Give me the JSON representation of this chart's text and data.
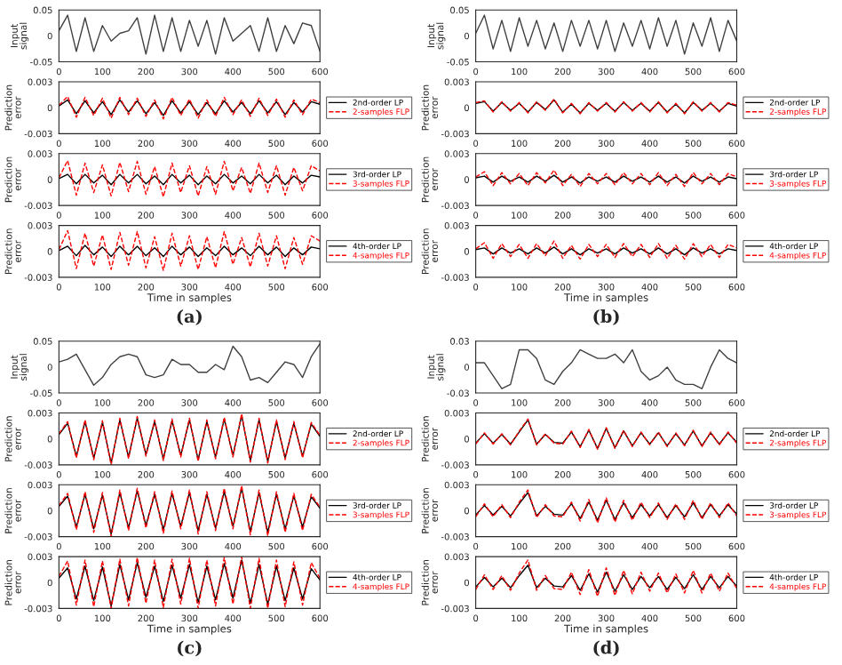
{
  "chart_data": [
    {
      "type": "line",
      "ylabel": "Input signal",
      "x": [
        0,
        20,
        40,
        60,
        80,
        100,
        120,
        140,
        160,
        180,
        200,
        220,
        240,
        260,
        280,
        300,
        320,
        340,
        360,
        380,
        400,
        420,
        440,
        460,
        480,
        500,
        520,
        540,
        560,
        580,
        600
      ],
      "xlim": [
        0,
        600
      ],
      "xticks": [
        0,
        100,
        200,
        300,
        400,
        500,
        600
      ],
      "ylim": [
        -0.05,
        0.05
      ],
      "yticks": [
        -0.05,
        0,
        0.05
      ],
      "series": [
        {
          "color": "#404040",
          "line_style": "solid",
          "values": [
            0.01,
            0.04,
            -0.03,
            0.035,
            -0.03,
            0.02,
            -0.01,
            0.005,
            0.01,
            0.035,
            -0.035,
            0.04,
            -0.03,
            0.035,
            -0.03,
            0.03,
            -0.02,
            0.03,
            -0.035,
            0.035,
            -0.01,
            0.005,
            0.02,
            -0.03,
            0.035,
            -0.03,
            0.02,
            -0.015,
            0.025,
            0.02,
            -0.03
          ]
        }
      ]
    },
    {
      "type": "line",
      "ylabel": "Prediction error",
      "x": [
        0,
        20,
        40,
        60,
        80,
        100,
        120,
        140,
        160,
        180,
        200,
        220,
        240,
        260,
        280,
        300,
        320,
        340,
        360,
        380,
        400,
        420,
        440,
        460,
        480,
        500,
        520,
        540,
        560,
        580,
        600
      ],
      "xlim": [
        0,
        600
      ],
      "xticks": [
        0,
        100,
        200,
        300,
        400,
        500,
        600
      ],
      "ylim": [
        -0.003,
        0.003
      ],
      "yticks": [
        -0.003,
        0,
        0.003
      ],
      "legend": "right",
      "series": [
        {
          "name": "2nd-order LP",
          "color": "#000000",
          "line_style": "solid",
          "values": [
            0.0002,
            0.0009,
            -0.0007,
            0.0008,
            -0.0006,
            0.0007,
            -0.0008,
            0.0009,
            -0.0005,
            0.0008,
            -0.0007,
            0.0006,
            -0.0009,
            0.0008,
            -0.0006,
            0.0007,
            -0.0008,
            0.0006,
            -0.0007,
            0.0008,
            -0.0005,
            0.0006,
            -0.0007,
            0.0008,
            -0.0006,
            0.0007,
            -0.0008,
            0.0006,
            -0.0005,
            0.0007,
            0.0004
          ]
        },
        {
          "name": "2-samples FLP",
          "color": "#ff0000",
          "line_style": "dashed",
          "values": [
            0.0003,
            0.0013,
            -0.0011,
            0.0012,
            -0.0009,
            0.0011,
            -0.0012,
            0.0012,
            -0.0008,
            0.0011,
            -0.001,
            0.0009,
            -0.0013,
            0.0012,
            -0.0009,
            0.001,
            -0.0012,
            0.0009,
            -0.001,
            0.0012,
            -0.0008,
            0.0009,
            -0.001,
            0.0011,
            -0.0009,
            0.001,
            -0.0011,
            0.0009,
            -0.0008,
            0.001,
            0.0006
          ]
        }
      ]
    },
    {
      "type": "line",
      "ylabel": "Prediction error",
      "x": [
        0,
        20,
        40,
        60,
        80,
        100,
        120,
        140,
        160,
        180,
        200,
        220,
        240,
        260,
        280,
        300,
        320,
        340,
        360,
        380,
        400,
        420,
        440,
        460,
        480,
        500,
        520,
        540,
        560,
        580,
        600
      ],
      "xlim": [
        0,
        600
      ],
      "xticks": [
        0,
        100,
        200,
        300,
        400,
        500,
        600
      ],
      "ylim": [
        -0.003,
        0.003
      ],
      "yticks": [
        -0.003,
        0,
        0.003
      ],
      "legend": "right",
      "series": [
        {
          "name": "3rd-order LP",
          "color": "#000000",
          "line_style": "solid",
          "values": [
            0.0001,
            0.0006,
            -0.0005,
            0.0006,
            -0.0004,
            0.0005,
            -0.0006,
            0.0006,
            -0.0004,
            0.0006,
            -0.0005,
            0.0004,
            -0.0006,
            0.0006,
            -0.0004,
            0.0005,
            -0.0006,
            0.0004,
            -0.0005,
            0.0006,
            -0.0004,
            0.0004,
            -0.0005,
            0.0006,
            -0.0004,
            0.0005,
            -0.0006,
            0.0004,
            -0.0004,
            0.0005,
            0.0003
          ]
        },
        {
          "name": "3-samples FLP",
          "color": "#ff0000",
          "line_style": "dashed",
          "values": [
            0.0002,
            0.0022,
            -0.0018,
            0.0019,
            -0.0015,
            0.0017,
            -0.0019,
            0.002,
            -0.0014,
            0.0021,
            -0.0017,
            0.0015,
            -0.002,
            0.0019,
            -0.0015,
            0.0016,
            -0.0019,
            0.0015,
            -0.0017,
            0.0021,
            -0.0013,
            0.0014,
            -0.0016,
            0.0019,
            -0.0015,
            0.0016,
            -0.0018,
            0.0014,
            -0.0013,
            0.0016,
            0.001
          ]
        }
      ]
    },
    {
      "type": "line",
      "ylabel": "Prediction error",
      "xlabel": "Time in samples",
      "annotations": [
        "(a)"
      ],
      "x": [
        0,
        20,
        40,
        60,
        80,
        100,
        120,
        140,
        160,
        180,
        200,
        220,
        240,
        260,
        280,
        300,
        320,
        340,
        360,
        380,
        400,
        420,
        440,
        460,
        480,
        500,
        520,
        540,
        560,
        580,
        600
      ],
      "xlim": [
        0,
        600
      ],
      "xticks": [
        0,
        100,
        200,
        300,
        400,
        500,
        600
      ],
      "ylim": [
        -0.003,
        0.003
      ],
      "yticks": [
        -0.003,
        0,
        0.003
      ],
      "legend": "right",
      "series": [
        {
          "name": "4th-order LP",
          "color": "#000000",
          "line_style": "solid",
          "values": [
            0.0001,
            0.0006,
            -0.0005,
            0.0007,
            -0.0004,
            0.0005,
            -0.0006,
            0.0006,
            -0.0004,
            0.0006,
            -0.0005,
            0.0004,
            -0.0006,
            0.0006,
            -0.0004,
            0.0005,
            -0.0006,
            0.0004,
            -0.0005,
            0.0006,
            -0.0004,
            0.0004,
            -0.0005,
            0.0006,
            -0.0004,
            0.0005,
            -0.0006,
            0.0004,
            -0.0004,
            0.0005,
            0.0003
          ]
        },
        {
          "name": "4-samples FLP",
          "color": "#ff0000",
          "line_style": "dashed",
          "values": [
            0.0002,
            0.0024,
            -0.002,
            0.0021,
            -0.0017,
            0.0019,
            -0.0021,
            0.0022,
            -0.0016,
            0.0023,
            -0.0019,
            0.0017,
            -0.0022,
            0.0021,
            -0.0017,
            0.0018,
            -0.0021,
            0.0017,
            -0.0019,
            0.0023,
            -0.0015,
            0.0016,
            -0.0018,
            0.0021,
            -0.0017,
            0.0018,
            -0.002,
            0.0016,
            -0.0015,
            0.0018,
            0.0012
          ]
        }
      ]
    },
    {
      "type": "line",
      "ylabel": "Input signal",
      "x": [
        0,
        20,
        40,
        60,
        80,
        100,
        120,
        140,
        160,
        180,
        200,
        220,
        240,
        260,
        280,
        300,
        320,
        340,
        360,
        380,
        400,
        420,
        440,
        460,
        480,
        500,
        520,
        540,
        560,
        580,
        600
      ],
      "xlim": [
        0,
        600
      ],
      "xticks": [
        0,
        100,
        200,
        300,
        400,
        500,
        600
      ],
      "ylim": [
        -0.05,
        0.05
      ],
      "yticks": [
        -0.05,
        0,
        0.05
      ],
      "series": [
        {
          "color": "#404040",
          "line_style": "solid",
          "values": [
            0.005,
            0.04,
            -0.025,
            0.03,
            -0.03,
            0.035,
            -0.02,
            0.03,
            -0.025,
            0.025,
            -0.03,
            0.03,
            -0.02,
            0.03,
            -0.025,
            0.03,
            -0.03,
            0.025,
            -0.02,
            0.03,
            -0.025,
            0.035,
            -0.02,
            0.03,
            -0.035,
            0.025,
            -0.02,
            0.035,
            -0.03,
            0.03,
            -0.01
          ]
        }
      ]
    },
    {
      "type": "line",
      "ylabel": "Prediction error",
      "x": [
        0,
        20,
        40,
        60,
        80,
        100,
        120,
        140,
        160,
        180,
        200,
        220,
        240,
        260,
        280,
        300,
        320,
        340,
        360,
        380,
        400,
        420,
        440,
        460,
        480,
        500,
        520,
        540,
        560,
        580,
        600
      ],
      "xlim": [
        0,
        600
      ],
      "xticks": [
        0,
        100,
        200,
        300,
        400,
        500,
        600
      ],
      "ylim": [
        -0.003,
        0.003
      ],
      "yticks": [
        -0.003,
        0,
        0.003
      ],
      "legend": "right",
      "series": [
        {
          "name": "2nd-order LP",
          "color": "#000000",
          "line_style": "solid",
          "values": [
            0.0005,
            0.0007,
            -0.0004,
            0.0006,
            -0.0003,
            0.0005,
            -0.0005,
            0.0006,
            -0.0002,
            0.0009,
            -0.0005,
            0.0004,
            -0.0006,
            0.0005,
            -0.0003,
            0.0005,
            -0.0004,
            0.0006,
            -0.0003,
            0.0005,
            -0.0004,
            0.0006,
            -0.0005,
            0.0004,
            -0.0006,
            0.0006,
            -0.0003,
            0.0005,
            -0.0004,
            0.0005,
            0.0002
          ]
        },
        {
          "name": "2-samples FLP",
          "color": "#ff0000",
          "line_style": "dashed",
          "values": [
            0.0006,
            0.0008,
            -0.0005,
            0.0007,
            -0.0004,
            0.0006,
            -0.0006,
            0.0007,
            -0.0003,
            0.001,
            -0.0006,
            0.0005,
            -0.0007,
            0.0006,
            -0.0004,
            0.0006,
            -0.0005,
            0.0007,
            -0.0004,
            0.0006,
            -0.0005,
            0.0007,
            -0.0006,
            0.0005,
            -0.0007,
            0.0007,
            -0.0004,
            0.0006,
            -0.0005,
            0.0006,
            0.0003
          ]
        }
      ]
    },
    {
      "type": "line",
      "ylabel": "Prediction error",
      "x": [
        0,
        20,
        40,
        60,
        80,
        100,
        120,
        140,
        160,
        180,
        200,
        220,
        240,
        260,
        280,
        300,
        320,
        340,
        360,
        380,
        400,
        420,
        440,
        460,
        480,
        500,
        520,
        540,
        560,
        580,
        600
      ],
      "xlim": [
        0,
        600
      ],
      "xticks": [
        0,
        100,
        200,
        300,
        400,
        500,
        600
      ],
      "ylim": [
        -0.003,
        0.003
      ],
      "yticks": [
        -0.003,
        0,
        0.003
      ],
      "legend": "right",
      "series": [
        {
          "name": "3rd-order LP",
          "color": "#000000",
          "line_style": "solid",
          "values": [
            0.0002,
            0.0004,
            -0.0003,
            0.0004,
            -0.0002,
            0.0003,
            -0.0003,
            0.0004,
            -0.0002,
            0.0005,
            -0.0003,
            0.0003,
            -0.0004,
            0.0003,
            -0.0002,
            0.0003,
            -0.0003,
            0.0004,
            -0.0002,
            0.0003,
            -0.0003,
            0.0004,
            -0.0003,
            0.0003,
            -0.0004,
            0.0004,
            -0.0002,
            0.0003,
            -0.0003,
            0.0003,
            0.0001
          ]
        },
        {
          "name": "3-samples FLP",
          "color": "#ff0000",
          "line_style": "dashed",
          "values": [
            0.0003,
            0.0009,
            -0.0007,
            0.0008,
            -0.0005,
            0.0007,
            -0.0007,
            0.0008,
            -0.0004,
            0.0011,
            -0.0007,
            0.0006,
            -0.0008,
            0.0007,
            -0.0005,
            0.0007,
            -0.0006,
            0.0008,
            -0.0005,
            0.0007,
            -0.0006,
            0.0008,
            -0.0007,
            0.0006,
            -0.0008,
            0.0008,
            -0.0005,
            0.0007,
            -0.0006,
            0.0007,
            0.0003
          ]
        }
      ]
    },
    {
      "type": "line",
      "ylabel": "Prediction error",
      "xlabel": "Time in samples",
      "annotations": [
        "(b)"
      ],
      "x": [
        0,
        20,
        40,
        60,
        80,
        100,
        120,
        140,
        160,
        180,
        200,
        220,
        240,
        260,
        280,
        300,
        320,
        340,
        360,
        380,
        400,
        420,
        440,
        460,
        480,
        500,
        520,
        540,
        560,
        580,
        600
      ],
      "xlim": [
        0,
        600
      ],
      "xticks": [
        0,
        100,
        200,
        300,
        400,
        500,
        600
      ],
      "ylim": [
        -0.003,
        0.003
      ],
      "yticks": [
        -0.003,
        0,
        0.003
      ],
      "legend": "right",
      "series": [
        {
          "name": "4th-order LP",
          "color": "#000000",
          "line_style": "solid",
          "values": [
            0.0002,
            0.0004,
            -0.0003,
            0.0004,
            -0.0002,
            0.0003,
            -0.0003,
            0.0004,
            -0.0002,
            0.0005,
            -0.0003,
            0.0003,
            -0.0004,
            0.0003,
            -0.0002,
            0.0003,
            -0.0003,
            0.0004,
            -0.0002,
            0.0003,
            -0.0003,
            0.0004,
            -0.0003,
            0.0003,
            -0.0004,
            0.0004,
            -0.0002,
            0.0003,
            -0.0003,
            0.0003,
            0.0001
          ]
        },
        {
          "name": "4-samples FLP",
          "color": "#ff0000",
          "line_style": "dashed",
          "values": [
            0.0003,
            0.001,
            -0.0008,
            0.0009,
            -0.0006,
            0.0008,
            -0.0008,
            0.0009,
            -0.0005,
            0.0012,
            -0.0008,
            0.0007,
            -0.0009,
            0.0008,
            -0.0006,
            0.0008,
            -0.0007,
            0.0009,
            -0.0006,
            0.0008,
            -0.0007,
            0.0009,
            -0.0008,
            0.0007,
            -0.0009,
            0.0009,
            -0.0006,
            0.0008,
            -0.0007,
            0.0008,
            0.0004
          ]
        }
      ]
    },
    {
      "type": "line",
      "ylabel": "Input signal",
      "x": [
        0,
        20,
        40,
        60,
        80,
        100,
        120,
        140,
        160,
        180,
        200,
        220,
        240,
        260,
        280,
        300,
        320,
        340,
        360,
        380,
        400,
        420,
        440,
        460,
        480,
        500,
        520,
        540,
        560,
        580,
        600
      ],
      "xlim": [
        0,
        600
      ],
      "xticks": [
        0,
        100,
        200,
        300,
        400,
        500,
        600
      ],
      "ylim": [
        -0.05,
        0.05
      ],
      "yticks": [
        -0.05,
        0,
        0.05
      ],
      "series": [
        {
          "color": "#404040",
          "line_style": "solid",
          "values": [
            0.01,
            0.015,
            0.025,
            -0.005,
            -0.035,
            -0.02,
            0.005,
            0.02,
            0.025,
            0.02,
            -0.015,
            -0.02,
            -0.015,
            0.015,
            0.005,
            0.005,
            -0.01,
            -0.01,
            0.005,
            -0.005,
            0.04,
            0.02,
            -0.025,
            -0.02,
            -0.03,
            -0.01,
            0.01,
            0.005,
            -0.02,
            0.02,
            0.045
          ]
        }
      ]
    },
    {
      "type": "line",
      "ylabel": "Prediction error",
      "x": [
        0,
        20,
        40,
        60,
        80,
        100,
        120,
        140,
        160,
        180,
        200,
        220,
        240,
        260,
        280,
        300,
        320,
        340,
        360,
        380,
        400,
        420,
        440,
        460,
        480,
        500,
        520,
        540,
        560,
        580,
        600
      ],
      "xlim": [
        0,
        600
      ],
      "xticks": [
        0,
        100,
        200,
        300,
        400,
        500,
        600
      ],
      "ylim": [
        -0.003,
        0.003
      ],
      "yticks": [
        -0.003,
        0,
        0.003
      ],
      "legend": "right",
      "series": [
        {
          "name": "2nd-order LP",
          "color": "#000000",
          "line_style": "solid",
          "values": [
            0.0005,
            0.0018,
            -0.002,
            0.002,
            -0.0022,
            0.0019,
            -0.0028,
            0.0022,
            -0.0021,
            0.0024,
            -0.0018,
            0.002,
            -0.0023,
            0.0021,
            -0.0019,
            0.0022,
            -0.0024,
            0.002,
            -0.0021,
            0.0023,
            -0.0019,
            0.0027,
            -0.0025,
            0.0022,
            -0.0026,
            0.002,
            -0.0022,
            0.0018,
            -0.002,
            0.0017,
            0.0003
          ]
        },
        {
          "name": "2-samples FLP",
          "color": "#ff0000",
          "line_style": "dashed",
          "values": [
            0.0006,
            0.002,
            -0.0022,
            0.0022,
            -0.0024,
            0.0021,
            -0.003,
            0.0024,
            -0.0023,
            0.0026,
            -0.002,
            0.0022,
            -0.0025,
            0.0023,
            -0.0021,
            0.0024,
            -0.0026,
            0.0022,
            -0.0023,
            0.0025,
            -0.0021,
            0.0029,
            -0.0027,
            0.0024,
            -0.0028,
            0.0022,
            -0.0024,
            0.002,
            -0.0022,
            0.0019,
            0.0004
          ]
        }
      ]
    },
    {
      "type": "line",
      "ylabel": "Prediction error",
      "x": [
        0,
        20,
        40,
        60,
        80,
        100,
        120,
        140,
        160,
        180,
        200,
        220,
        240,
        260,
        280,
        300,
        320,
        340,
        360,
        380,
        400,
        420,
        440,
        460,
        480,
        500,
        520,
        540,
        560,
        580,
        600
      ],
      "xlim": [
        0,
        600
      ],
      "xticks": [
        0,
        100,
        200,
        300,
        400,
        500,
        600
      ],
      "ylim": [
        -0.003,
        0.003
      ],
      "yticks": [
        -0.003,
        0,
        0.003
      ],
      "legend": "right",
      "series": [
        {
          "name": "3rd-order LP",
          "color": "#000000",
          "line_style": "solid",
          "values": [
            0.0005,
            0.0017,
            -0.0019,
            0.0019,
            -0.0021,
            0.0018,
            -0.0027,
            0.0021,
            -0.002,
            0.0023,
            -0.0017,
            0.0019,
            -0.0022,
            0.002,
            -0.0018,
            0.0021,
            -0.0023,
            0.0019,
            -0.002,
            0.0022,
            -0.0018,
            0.0026,
            -0.0024,
            0.0021,
            -0.0025,
            0.0019,
            -0.0021,
            0.0017,
            -0.0019,
            0.0016,
            0.0003
          ]
        },
        {
          "name": "3-samples FLP",
          "color": "#ff0000",
          "line_style": "dashed",
          "values": [
            0.0006,
            0.002,
            -0.0022,
            0.0022,
            -0.0025,
            0.0021,
            -0.003,
            0.0024,
            -0.0023,
            0.0026,
            -0.002,
            0.0022,
            -0.0026,
            0.0023,
            -0.0021,
            0.0024,
            -0.0027,
            0.0022,
            -0.0023,
            0.0026,
            -0.0021,
            0.0029,
            -0.0028,
            0.0024,
            -0.0029,
            0.0022,
            -0.0025,
            0.002,
            -0.0023,
            0.0019,
            0.0004
          ]
        }
      ]
    },
    {
      "type": "line",
      "ylabel": "Prediction error",
      "xlabel": "Time in samples",
      "annotations": [
        "(c)"
      ],
      "x": [
        0,
        20,
        40,
        60,
        80,
        100,
        120,
        140,
        160,
        180,
        200,
        220,
        240,
        260,
        280,
        300,
        320,
        340,
        360,
        380,
        400,
        420,
        440,
        460,
        480,
        500,
        520,
        540,
        560,
        580,
        600
      ],
      "xlim": [
        0,
        600
      ],
      "xticks": [
        0,
        100,
        200,
        300,
        400,
        500,
        600
      ],
      "ylim": [
        -0.003,
        0.003
      ],
      "yticks": [
        -0.003,
        0,
        0.003
      ],
      "legend": "right",
      "series": [
        {
          "name": "4th-order LP",
          "color": "#000000",
          "line_style": "solid",
          "values": [
            0.0005,
            0.0017,
            -0.0019,
            0.0019,
            -0.0021,
            0.0018,
            -0.0027,
            0.0021,
            -0.002,
            0.0023,
            -0.0017,
            0.0019,
            -0.0022,
            0.002,
            -0.0018,
            0.0021,
            -0.0023,
            0.0019,
            -0.002,
            0.0022,
            -0.0018,
            0.0026,
            -0.0024,
            0.0021,
            -0.0025,
            0.0019,
            -0.0021,
            0.0017,
            -0.0019,
            0.0016,
            0.0003
          ]
        },
        {
          "name": "4-samples FLP",
          "color": "#ff0000",
          "line_style": "dashed",
          "values": [
            0.0007,
            0.0025,
            -0.0026,
            0.0026,
            -0.0028,
            0.0025,
            -0.003,
            0.0027,
            -0.0027,
            0.0029,
            -0.0024,
            0.0026,
            -0.0029,
            0.0027,
            -0.0025,
            0.0028,
            -0.003,
            0.0026,
            -0.0027,
            0.0029,
            -0.0025,
            0.003,
            -0.003,
            0.0028,
            -0.003,
            0.0026,
            -0.0028,
            0.0024,
            -0.0026,
            0.0023,
            0.0005
          ]
        }
      ]
    },
    {
      "type": "line",
      "ylabel": "Input signal",
      "x": [
        0,
        20,
        40,
        60,
        80,
        100,
        120,
        140,
        160,
        180,
        200,
        220,
        240,
        260,
        280,
        300,
        320,
        340,
        360,
        380,
        400,
        420,
        440,
        460,
        480,
        500,
        520,
        540,
        560,
        580,
        600
      ],
      "xlim": [
        0,
        600
      ],
      "xticks": [
        0,
        100,
        200,
        300,
        400,
        500,
        600
      ],
      "ylim": [
        -0.03,
        0.03
      ],
      "yticks": [
        -0.03,
        0,
        0.03
      ],
      "series": [
        {
          "color": "#404040",
          "line_style": "solid",
          "values": [
            0.005,
            0.005,
            -0.01,
            -0.025,
            -0.02,
            0.02,
            0.02,
            0.01,
            -0.015,
            -0.02,
            -0.005,
            0.005,
            0.02,
            0.015,
            0.01,
            0.01,
            0.015,
            0.005,
            0.02,
            -0.005,
            -0.015,
            -0.01,
            0.0,
            -0.015,
            -0.02,
            -0.02,
            -0.025,
            0.0,
            0.02,
            0.01,
            0.005
          ]
        }
      ]
    },
    {
      "type": "line",
      "ylabel": "Prediction error",
      "x": [
        0,
        20,
        40,
        60,
        80,
        100,
        120,
        140,
        160,
        180,
        200,
        220,
        240,
        260,
        280,
        300,
        320,
        340,
        360,
        380,
        400,
        420,
        440,
        460,
        480,
        500,
        520,
        540,
        560,
        580,
        600
      ],
      "xlim": [
        0,
        600
      ],
      "xticks": [
        0,
        100,
        200,
        300,
        400,
        500,
        600
      ],
      "ylim": [
        -0.003,
        0.003
      ],
      "yticks": [
        -0.003,
        0,
        0.003
      ],
      "legend": "right",
      "series": [
        {
          "name": "2nd-order LP",
          "color": "#000000",
          "line_style": "solid",
          "values": [
            -0.0005,
            0.0006,
            -0.0005,
            0.0005,
            -0.0006,
            0.0008,
            0.0022,
            -0.0006,
            0.0005,
            -0.0004,
            -0.0005,
            0.0008,
            -0.0009,
            0.001,
            -0.0011,
            0.0012,
            -0.001,
            0.0009,
            -0.0008,
            0.0007,
            -0.0006,
            0.0007,
            -0.0008,
            0.0006,
            -0.0007,
            0.0009,
            -0.0008,
            0.0007,
            -0.0006,
            0.0007,
            -0.0004
          ]
        },
        {
          "name": "2-samples FLP",
          "color": "#ff0000",
          "line_style": "dashed",
          "values": [
            -0.0006,
            0.0007,
            -0.0006,
            0.0006,
            -0.0007,
            0.0009,
            0.0023,
            -0.0007,
            0.0006,
            -0.0005,
            -0.0006,
            0.0009,
            -0.001,
            0.0011,
            -0.0012,
            0.0013,
            -0.0011,
            0.001,
            -0.0009,
            0.0008,
            -0.0007,
            0.0008,
            -0.0009,
            0.0007,
            -0.0008,
            0.001,
            -0.0009,
            0.0008,
            -0.0007,
            0.0008,
            -0.0005
          ]
        }
      ]
    },
    {
      "type": "line",
      "ylabel": "Prediction error",
      "x": [
        0,
        20,
        40,
        60,
        80,
        100,
        120,
        140,
        160,
        180,
        200,
        220,
        240,
        260,
        280,
        300,
        320,
        340,
        360,
        380,
        400,
        420,
        440,
        460,
        480,
        500,
        520,
        540,
        560,
        580,
        600
      ],
      "xlim": [
        0,
        600
      ],
      "xticks": [
        0,
        100,
        200,
        300,
        400,
        500,
        600
      ],
      "ylim": [
        -0.003,
        0.003
      ],
      "yticks": [
        -0.003,
        0,
        0.003
      ],
      "legend": "right",
      "series": [
        {
          "name": "3rd-order LP",
          "color": "#000000",
          "line_style": "solid",
          "values": [
            -0.0005,
            0.0006,
            -0.0005,
            0.0005,
            -0.0006,
            0.0008,
            0.0021,
            -0.0006,
            0.0005,
            -0.0004,
            -0.0005,
            0.0008,
            -0.0009,
            0.001,
            -0.0011,
            0.0012,
            -0.001,
            0.0009,
            -0.0008,
            0.0007,
            -0.0006,
            0.0007,
            -0.0008,
            0.0006,
            -0.0007,
            0.0009,
            -0.0008,
            0.0007,
            -0.0006,
            0.0007,
            -0.0004
          ]
        },
        {
          "name": "3-samples FLP",
          "color": "#ff0000",
          "line_style": "dashed",
          "values": [
            -0.0007,
            0.0008,
            -0.0007,
            0.0007,
            -0.0008,
            0.001,
            0.0024,
            -0.0008,
            0.0007,
            -0.0006,
            -0.0007,
            0.001,
            -0.0012,
            0.0013,
            -0.0014,
            0.0015,
            -0.0013,
            0.0012,
            -0.0011,
            0.001,
            -0.0008,
            0.0009,
            -0.001,
            0.0008,
            -0.001,
            0.0012,
            -0.001,
            0.0009,
            -0.0008,
            0.0009,
            -0.0006
          ]
        }
      ]
    },
    {
      "type": "line",
      "ylabel": "Prediction error",
      "xlabel": "Time in samples",
      "annotations": [
        "(d)"
      ],
      "x": [
        0,
        20,
        40,
        60,
        80,
        100,
        120,
        140,
        160,
        180,
        200,
        220,
        240,
        260,
        280,
        300,
        320,
        340,
        360,
        380,
        400,
        420,
        440,
        460,
        480,
        500,
        520,
        540,
        560,
        580,
        600
      ],
      "xlim": [
        0,
        600
      ],
      "xticks": [
        0,
        100,
        200,
        300,
        400,
        500,
        600
      ],
      "ylim": [
        -0.003,
        0.003
      ],
      "yticks": [
        -0.003,
        0,
        0.003
      ],
      "legend": "right",
      "series": [
        {
          "name": "4th-order LP",
          "color": "#000000",
          "line_style": "solid",
          "values": [
            -0.0005,
            0.0006,
            -0.0005,
            0.0005,
            -0.0006,
            0.0008,
            0.002,
            -0.0006,
            0.0005,
            -0.0004,
            -0.0005,
            0.0008,
            -0.0009,
            0.001,
            -0.0011,
            0.0012,
            -0.001,
            0.0009,
            -0.0008,
            0.0007,
            -0.0006,
            0.0007,
            -0.0008,
            0.0006,
            -0.0007,
            0.0009,
            -0.0008,
            0.0007,
            -0.0006,
            0.0007,
            -0.0004
          ]
        },
        {
          "name": "4-samples FLP",
          "color": "#ff0000",
          "line_style": "dashed",
          "values": [
            -0.0008,
            0.0009,
            -0.0008,
            0.0008,
            -0.0009,
            0.0011,
            0.0026,
            -0.0009,
            0.0008,
            -0.0007,
            -0.0008,
            0.0012,
            -0.0014,
            0.0015,
            -0.0016,
            0.0017,
            -0.0015,
            0.0014,
            -0.0013,
            0.0012,
            -0.001,
            0.0011,
            -0.0012,
            0.001,
            -0.0012,
            0.0014,
            -0.0012,
            0.0011,
            -0.001,
            0.0011,
            -0.0007
          ]
        }
      ]
    }
  ]
}
